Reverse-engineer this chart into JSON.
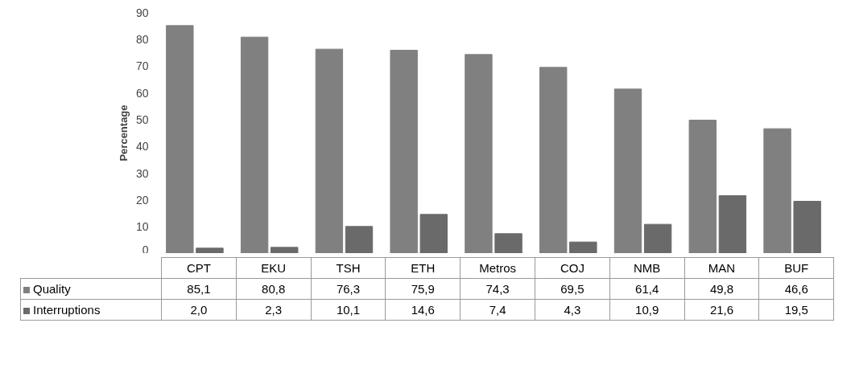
{
  "chart_data": {
    "type": "bar",
    "ylabel": "Percentage",
    "categories": [
      "CPT",
      "EKU",
      "TSH",
      "ETH",
      "Metros",
      "COJ",
      "NMB",
      "MAN",
      "BUF"
    ],
    "series": [
      {
        "name": "Quality",
        "color": "#808080",
        "values": [
          85.1,
          80.8,
          76.3,
          75.9,
          74.3,
          69.5,
          61.4,
          49.8,
          46.6
        ],
        "value_labels": [
          "85,1",
          "80,8",
          "76,3",
          "75,9",
          "74,3",
          "69,5",
          "61,4",
          "49,8",
          "46,6"
        ]
      },
      {
        "name": "Interruptions",
        "color": "#6a6a6a",
        "values": [
          2.0,
          2.3,
          10.1,
          14.6,
          7.4,
          4.3,
          10.9,
          21.6,
          19.5
        ],
        "value_labels": [
          "2,0",
          "2,3",
          "10,1",
          "14,6",
          "7,4",
          "4,3",
          "10,9",
          "21,6",
          "19,5"
        ]
      }
    ],
    "ylim": [
      0,
      90
    ],
    "yticks": [
      0,
      10,
      20,
      30,
      40,
      50,
      60,
      70,
      80,
      90
    ],
    "grid": false,
    "legend": "bottom"
  }
}
